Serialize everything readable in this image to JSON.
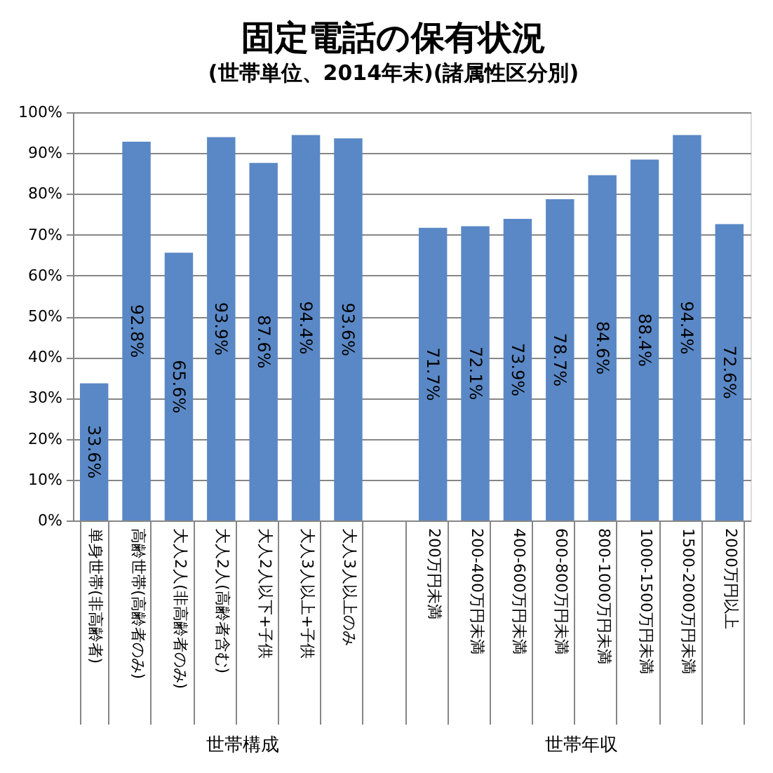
{
  "chart_data": {
    "type": "bar",
    "title": "固定電話の保有状況",
    "subtitle": "(世帯単位、2014年末)(諸属性区分別)",
    "categories": [
      "単身世帯(非高齢者)",
      "高齢世帯(高齢者のみ)",
      "大人2人(非高齢者のみ)",
      "大人2人(高齢者含む)",
      "大人2人以下+子供",
      "大人3人以上+子供",
      "大人3人以上のみ",
      null,
      "200万円未満",
      "200-400万円未満",
      "400-600万円未満",
      "600-800万円未満",
      "800-1000万円未満",
      "1000-1500万円未満",
      "1500-2000万円未満",
      "2000万円以上"
    ],
    "values": [
      33.6,
      92.8,
      65.6,
      93.9,
      87.6,
      94.4,
      93.6,
      null,
      71.7,
      72.1,
      73.9,
      78.7,
      84.6,
      88.4,
      94.4,
      72.6
    ],
    "value_labels": [
      "33.6%",
      "92.8%",
      "65.6%",
      "93.9%",
      "87.6%",
      "94.4%",
      "93.6%",
      null,
      "71.7%",
      "72.1%",
      "73.9%",
      "78.7%",
      "84.6%",
      "88.4%",
      "94.4%",
      "72.6%"
    ],
    "color": "#5a88c6",
    "ylim": [
      0,
      100
    ],
    "yticks": [
      {
        "value": 0,
        "label": "0%"
      },
      {
        "value": 10,
        "label": "10%"
      },
      {
        "value": 20,
        "label": "20%"
      },
      {
        "value": 30,
        "label": "30%"
      },
      {
        "value": 40,
        "label": "40%"
      },
      {
        "value": 50,
        "label": "50%"
      },
      {
        "value": 60,
        "label": "60%"
      },
      {
        "value": 70,
        "label": "70%"
      },
      {
        "value": 80,
        "label": "80%"
      },
      {
        "value": 90,
        "label": "90%"
      },
      {
        "value": 100,
        "label": "100%"
      }
    ],
    "grid": "y",
    "annotations": [
      "世帯構成",
      "世帯年収"
    ]
  }
}
